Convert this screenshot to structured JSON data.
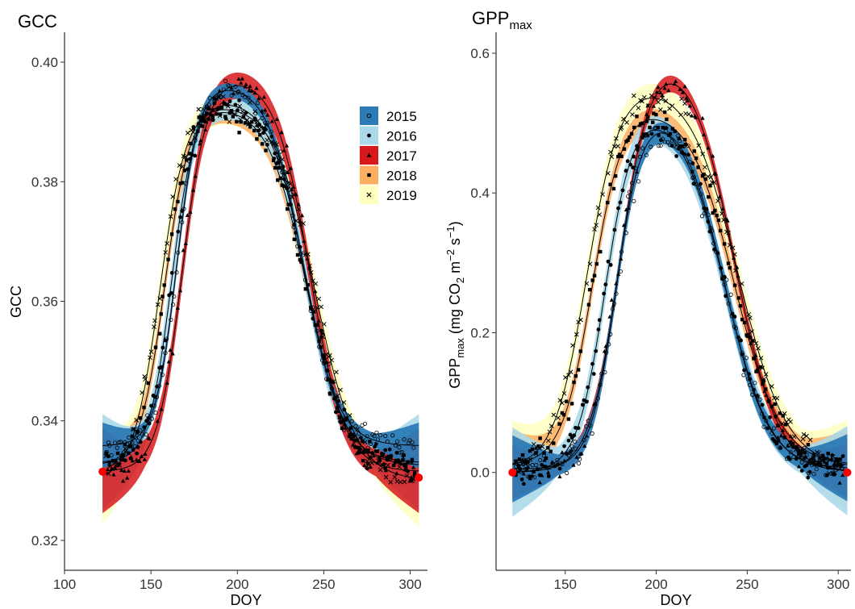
{
  "colors": {
    "2015": "#2C7BB6",
    "2016": "#ABD9E9",
    "2017": "#D7191C",
    "2018": "#FDAE61",
    "2019": "#FFFFBF",
    "endpoint": "#FF0000"
  },
  "chart_data": [
    {
      "type": "scatter",
      "title": "GCC",
      "xlabel": "DOY",
      "ylabel": "GCC",
      "xlim": [
        100,
        310
      ],
      "ylim": [
        0.315,
        0.405
      ],
      "x_ticks": [
        100,
        150,
        200,
        250,
        300
      ],
      "y_ticks": [
        0.32,
        0.34,
        0.36,
        0.38,
        0.4
      ],
      "x_tick_labels": [
        "100",
        "150",
        "200",
        "250",
        "300"
      ],
      "y_tick_labels": [
        "0.32",
        "0.34",
        "0.36",
        "0.38",
        "0.40"
      ],
      "legend": {
        "placement": "top-right",
        "entries": [
          {
            "label": "2015",
            "marker": "circle-open"
          },
          {
            "label": "2016",
            "marker": "circle-filled"
          },
          {
            "label": "2017",
            "marker": "triangle"
          },
          {
            "label": "2018",
            "marker": "square"
          },
          {
            "label": "2019",
            "marker": "cross"
          }
        ]
      },
      "series": [
        {
          "name": "2015",
          "base": 0.3358,
          "peak": 0.3943,
          "peak_doy": 205,
          "rise_doy": 165,
          "rise_rate": 0.16,
          "fall_doy": 238,
          "fall_rate": 0.1,
          "band": 0.0012
        },
        {
          "name": "2016",
          "base": 0.333,
          "peak": 0.3925,
          "peak_doy": 200,
          "rise_doy": 162,
          "rise_rate": 0.15,
          "fall_doy": 240,
          "fall_rate": 0.095,
          "band": 0.0025
        },
        {
          "name": "2017",
          "base": 0.3315,
          "peak": 0.395,
          "peak_doy": 210,
          "rise_doy": 168,
          "rise_rate": 0.14,
          "fall_doy": 242,
          "fall_rate": 0.1,
          "band": 0.0022
        },
        {
          "name": "2018",
          "base": 0.3325,
          "peak": 0.3915,
          "peak_doy": 195,
          "rise_doy": 158,
          "rise_rate": 0.14,
          "fall_doy": 240,
          "fall_rate": 0.09,
          "band": 0.0018
        },
        {
          "name": "2019",
          "base": 0.33,
          "peak": 0.392,
          "peak_doy": 190,
          "rise_doy": 155,
          "rise_rate": 0.13,
          "fall_doy": 245,
          "fall_rate": 0.085,
          "band": 0.0025
        }
      ],
      "endpoints": [
        {
          "x": 122,
          "y": 0.3315
        },
        {
          "x": 305,
          "y": 0.3305
        }
      ]
    },
    {
      "type": "scatter",
      "title": "GPP",
      "title_sub": "max",
      "xlabel": "DOY",
      "ylabel": "GPPmax (mg CO2 m-2 s-1)",
      "xlim": [
        112,
        307
      ],
      "ylim": [
        -0.14,
        0.63
      ],
      "x_ticks": [
        150,
        200,
        250,
        300
      ],
      "y_ticks": [
        0.0,
        0.2,
        0.4,
        0.6
      ],
      "x_tick_labels": [
        "150",
        "200",
        "250",
        "300"
      ],
      "y_tick_labels": [
        "0.0",
        "0.2",
        "0.4",
        "0.6"
      ],
      "series": [
        {
          "name": "2015",
          "base": 0.005,
          "peak": 0.485,
          "peak_doy": 205,
          "rise_doy": 178,
          "rise_rate": 0.14,
          "fall_doy": 238,
          "fall_rate": 0.085,
          "band": 0.015
        },
        {
          "name": "2016",
          "base": 0.0,
          "peak": 0.49,
          "peak_doy": 200,
          "rise_doy": 172,
          "rise_rate": 0.13,
          "fall_doy": 238,
          "fall_rate": 0.08,
          "band": 0.02
        },
        {
          "name": "2017",
          "base": 0.0,
          "peak": 0.555,
          "peak_doy": 210,
          "rise_doy": 180,
          "rise_rate": 0.12,
          "fall_doy": 243,
          "fall_rate": 0.085,
          "band": 0.012
        },
        {
          "name": "2018",
          "base": 0.01,
          "peak": 0.505,
          "peak_doy": 198,
          "rise_doy": 165,
          "rise_rate": 0.12,
          "fall_doy": 243,
          "fall_rate": 0.08,
          "band": 0.015
        },
        {
          "name": "2019",
          "base": 0.005,
          "peak": 0.535,
          "peak_doy": 195,
          "rise_doy": 162,
          "rise_rate": 0.11,
          "fall_doy": 245,
          "fall_rate": 0.075,
          "band": 0.02
        }
      ],
      "endpoints": [
        {
          "x": 121,
          "y": 0.0
        },
        {
          "x": 305,
          "y": 0.0
        }
      ]
    }
  ]
}
